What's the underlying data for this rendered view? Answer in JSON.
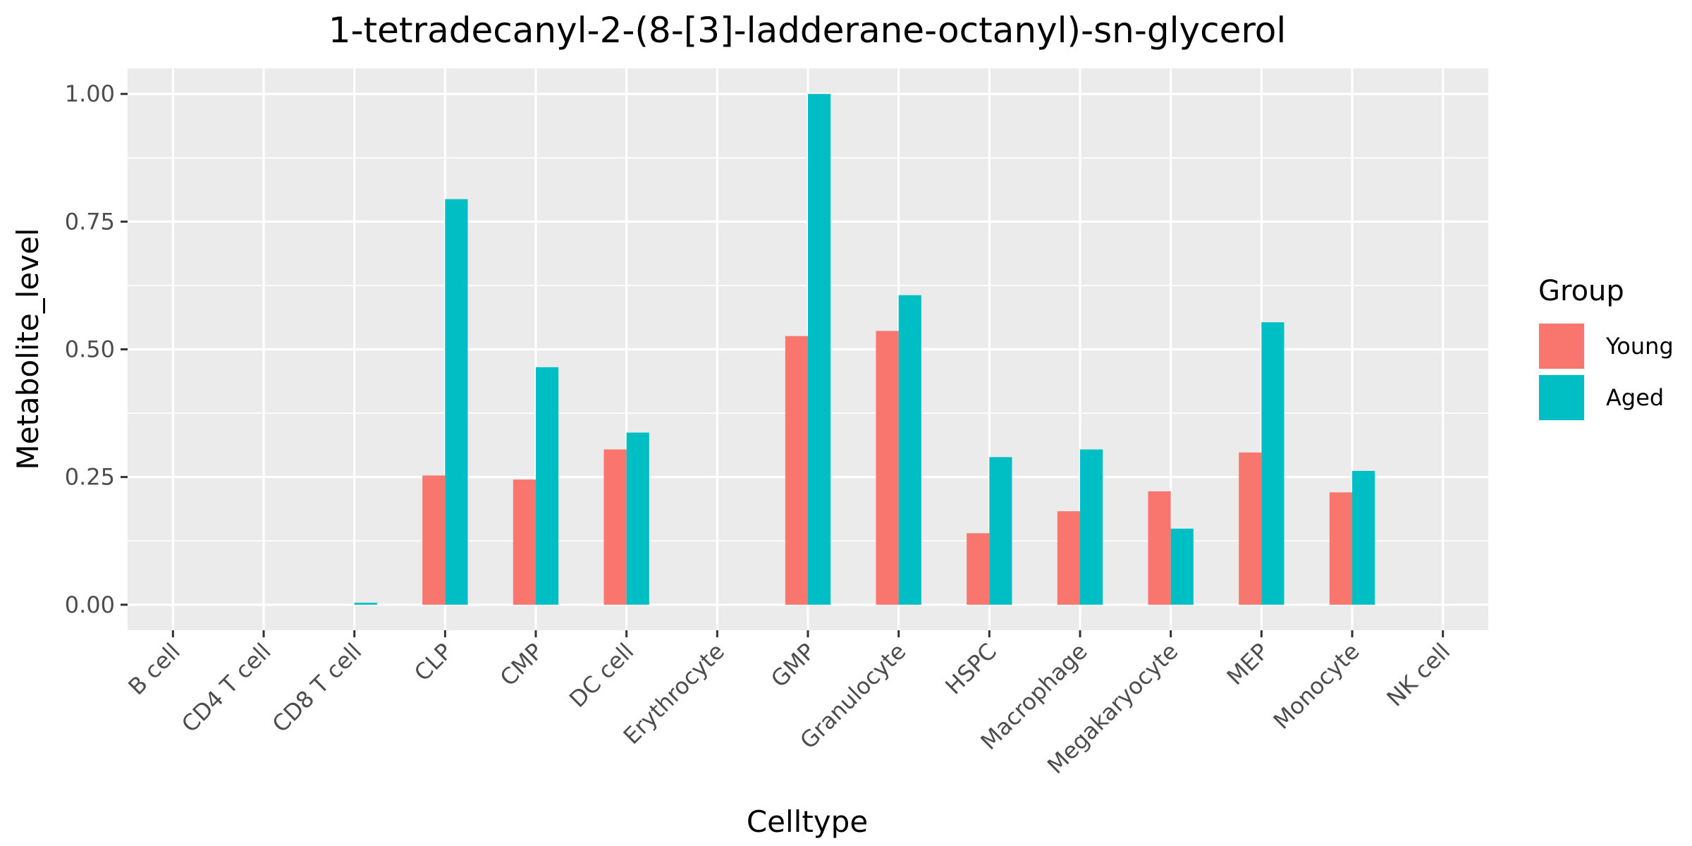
{
  "chart_data": {
    "type": "bar",
    "title": "1-tetradecanyl-2-(8-[3]-ladderane-octanyl)-sn-glycerol",
    "xlabel": "Celltype",
    "ylabel": "Metabolite_level",
    "ylim": [
      -0.05,
      1.05
    ],
    "yticks": [
      0.0,
      0.25,
      0.5,
      0.75,
      1.0
    ],
    "ytick_labels": [
      "0.00",
      "0.25",
      "0.50",
      "0.75",
      "1.00"
    ],
    "grid": true,
    "legend_position": "right",
    "legend_title": "Group",
    "categories": [
      "B cell",
      "CD4 T cell",
      "CD8 T cell",
      "CLP",
      "CMP",
      "DC cell",
      "Erythrocyte",
      "GMP",
      "Granulocyte",
      "HSPC",
      "Macrophage",
      "Megakaryocyte",
      "MEP",
      "Monocyte",
      "NK cell"
    ],
    "series": [
      {
        "name": "Young",
        "color": "#F8766D",
        "values": [
          0,
          0,
          0,
          0.253,
          0.245,
          0.304,
          0,
          0.526,
          0.536,
          0.14,
          0.183,
          0.222,
          0.298,
          0.22,
          0
        ]
      },
      {
        "name": "Aged",
        "color": "#00BFC4",
        "values": [
          0,
          0,
          0.004,
          0.794,
          0.465,
          0.337,
          0,
          1.0,
          0.606,
          0.289,
          0.304,
          0.149,
          0.553,
          0.262,
          0
        ]
      }
    ]
  }
}
